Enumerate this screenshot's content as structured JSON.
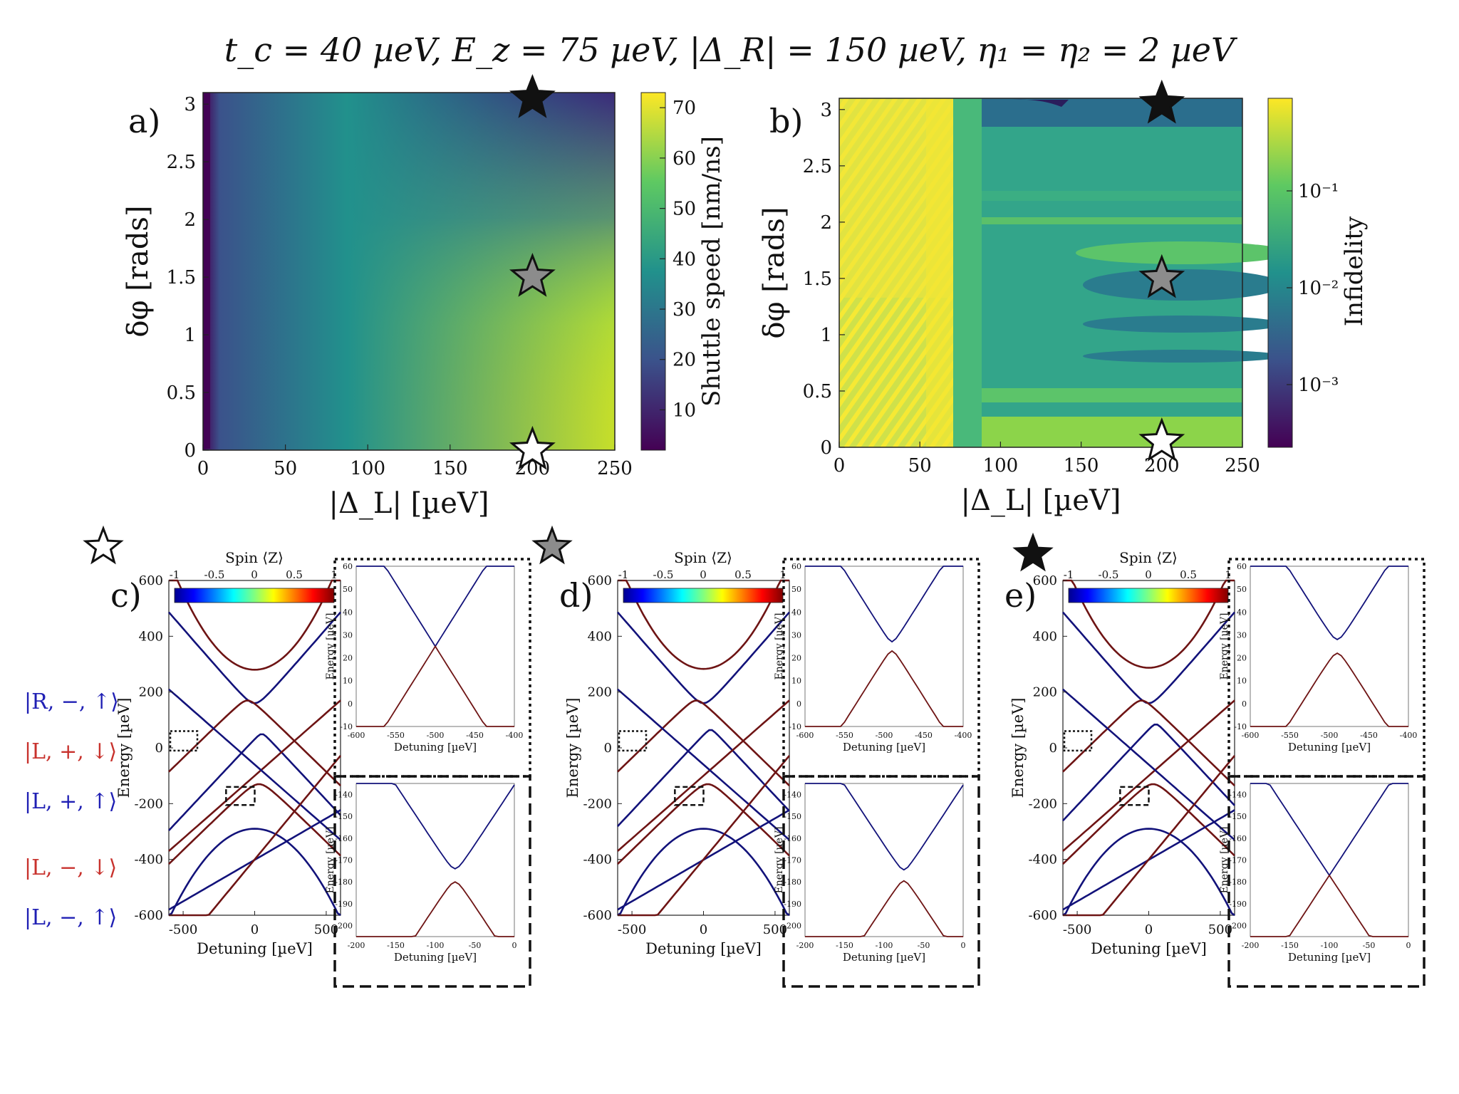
{
  "title": "t_c = 40 µeV, E_z = 75 µeV, |Δ_R| = 150 µeV, η₁ = η₂ = 2 µeV",
  "chart_data": [
    {
      "id": "a",
      "type": "heatmap",
      "panel_label": "a)",
      "xlabel": "|Δ_L| [µeV]",
      "ylabel": "δφ [rads]",
      "xlim": [
        0,
        250
      ],
      "ylim": [
        0,
        3.1
      ],
      "xticks": [
        0,
        50,
        100,
        150,
        200,
        250
      ],
      "yticks": [
        0,
        0.5,
        1,
        1.5,
        2,
        2.5,
        3
      ],
      "colorbar": {
        "label": "Shuttle speed [nm/ns]",
        "min": 2,
        "max": 73,
        "ticks": [
          10,
          20,
          30,
          40,
          50,
          60,
          70
        ],
        "scale": "linear"
      },
      "markers": [
        {
          "name": "white-star",
          "x": 200,
          "y": 0
        },
        {
          "name": "gray-star",
          "x": 200,
          "y": 1.5
        },
        {
          "name": "black-star",
          "x": 200,
          "y": 3.05
        }
      ]
    },
    {
      "id": "b",
      "type": "heatmap",
      "panel_label": "b)",
      "xlabel": "|Δ_L| [µeV]",
      "ylabel": "δφ [rads]",
      "xlim": [
        0,
        250
      ],
      "ylim": [
        0,
        3.1
      ],
      "xticks": [
        0,
        50,
        100,
        150,
        200,
        250
      ],
      "yticks": [
        0,
        0.5,
        1,
        1.5,
        2,
        2.5,
        3
      ],
      "colorbar": {
        "label": "Infidelity",
        "scale": "log",
        "ticks": [
          "10⁻¹",
          "10⁻²",
          "10⁻³"
        ]
      },
      "markers": [
        {
          "name": "white-star",
          "x": 200,
          "y": 0.05
        },
        {
          "name": "gray-star",
          "x": 200,
          "y": 1.5
        },
        {
          "name": "black-star",
          "x": 200,
          "y": 3.05
        }
      ]
    },
    {
      "id": "c",
      "type": "line",
      "panel_label": "c)",
      "star": "white-star",
      "xlabel": "Detuning [µeV]",
      "ylabel": "Energy [µeV]",
      "xlim": [
        -600,
        600
      ],
      "ylim": [
        -600,
        600
      ],
      "xticks": [
        -500,
        0,
        500
      ],
      "yticks": [
        -600,
        -400,
        -200,
        0,
        200,
        400,
        600
      ],
      "spin_colorbar": {
        "label": "Spin ⟨Z⟩",
        "ticks": [
          "-1",
          "-0.5",
          "0",
          "0.5",
          "1"
        ]
      },
      "inset_top": {
        "xlabel": "Detuning [µeV]",
        "ylabel": "Energy [µeV]",
        "xlim": [
          -600,
          -400
        ],
        "ylim": [
          -10,
          60
        ],
        "xticks": [
          -600,
          -550,
          -500,
          -450,
          -400
        ],
        "yticks": [
          -10,
          0,
          10,
          20,
          30,
          40,
          50,
          60
        ],
        "gap": 0
      },
      "inset_bottom": {
        "xlabel": "Detuning [µeV]",
        "ylabel": "Energy [µeV]",
        "xlim": [
          -200,
          0
        ],
        "ylim": [
          -205,
          -135
        ],
        "xticks": [
          -200,
          -150,
          -100,
          -50,
          0
        ],
        "yticks": [
          -200,
          -190,
          -180,
          -170,
          -160,
          -150,
          -140
        ],
        "gap": 6
      }
    },
    {
      "id": "d",
      "type": "line",
      "panel_label": "d)",
      "star": "gray-star",
      "xlabel": "Detuning [µeV]",
      "ylabel": "Energy [µeV]",
      "xlim": [
        -600,
        600
      ],
      "ylim": [
        -600,
        600
      ],
      "xticks": [
        -500,
        0,
        500
      ],
      "yticks": [
        -600,
        -400,
        -200,
        0,
        200,
        400,
        600
      ],
      "spin_colorbar": {
        "label": "Spin ⟨Z⟩",
        "ticks": [
          "-1",
          "-0.5",
          "0",
          "0.5",
          "1"
        ]
      },
      "inset_top": {
        "xlabel": "Detuning [µeV]",
        "ylabel": "Energy [µeV]",
        "xlim": [
          -600,
          -400
        ],
        "ylim": [
          -10,
          60
        ],
        "xticks": [
          -600,
          -550,
          -500,
          -450,
          -400
        ],
        "yticks": [
          -10,
          0,
          10,
          20,
          30,
          40,
          50,
          60
        ],
        "gap": 4
      },
      "inset_bottom": {
        "xlabel": "Detuning [µeV]",
        "ylabel": "Energy [µeV]",
        "xlim": [
          -200,
          0
        ],
        "ylim": [
          -205,
          -135
        ],
        "xticks": [
          -200,
          -150,
          -100,
          -50,
          0
        ],
        "yticks": [
          -200,
          -190,
          -180,
          -170,
          -160,
          -150,
          -140
        ],
        "gap": 5
      }
    },
    {
      "id": "e",
      "type": "line",
      "panel_label": "e)",
      "star": "black-star",
      "xlabel": "Detuning [µeV]",
      "ylabel": "Energy [µeV]",
      "xlim": [
        -600,
        600
      ],
      "ylim": [
        -600,
        600
      ],
      "xticks": [
        -500,
        0,
        500
      ],
      "yticks": [
        -600,
        -400,
        -200,
        0,
        200,
        400,
        600
      ],
      "spin_colorbar": {
        "label": "Spin ⟨Z⟩",
        "ticks": [
          "-1",
          "-0.5",
          "0",
          "0.5",
          "1"
        ]
      },
      "inset_top": {
        "xlabel": "Detuning [µeV]",
        "ylabel": "Energy [µeV]",
        "xlim": [
          -600,
          -400
        ],
        "ylim": [
          -10,
          60
        ],
        "xticks": [
          -600,
          -550,
          -500,
          -450,
          -400
        ],
        "yticks": [
          -10,
          0,
          10,
          20,
          30,
          40,
          50,
          60
        ],
        "gap": 6
      },
      "inset_bottom": {
        "xlabel": "Detuning [µeV]",
        "ylabel": "Energy [µeV]",
        "xlim": [
          -200,
          0
        ],
        "ylim": [
          -205,
          -135
        ],
        "xticks": [
          -200,
          -150,
          -100,
          -50,
          0
        ],
        "yticks": [
          -200,
          -190,
          -180,
          -170,
          -160,
          -150,
          -140
        ],
        "gap": 0
      }
    }
  ],
  "state_labels": [
    {
      "text": "|R, −, ↑⟩",
      "color": "#1f1fb4"
    },
    {
      "text": "|L, +, ↓⟩",
      "color": "#c8322d"
    },
    {
      "text": "|L, +, ↑⟩",
      "color": "#1f1fb4"
    },
    {
      "text": "|L, −, ↓⟩",
      "color": "#c8322d"
    },
    {
      "text": "|L, −, ↑⟩",
      "color": "#1f1fb4"
    }
  ],
  "colors": {
    "spin_up": "#6e1414",
    "spin_down": "#12127a"
  }
}
